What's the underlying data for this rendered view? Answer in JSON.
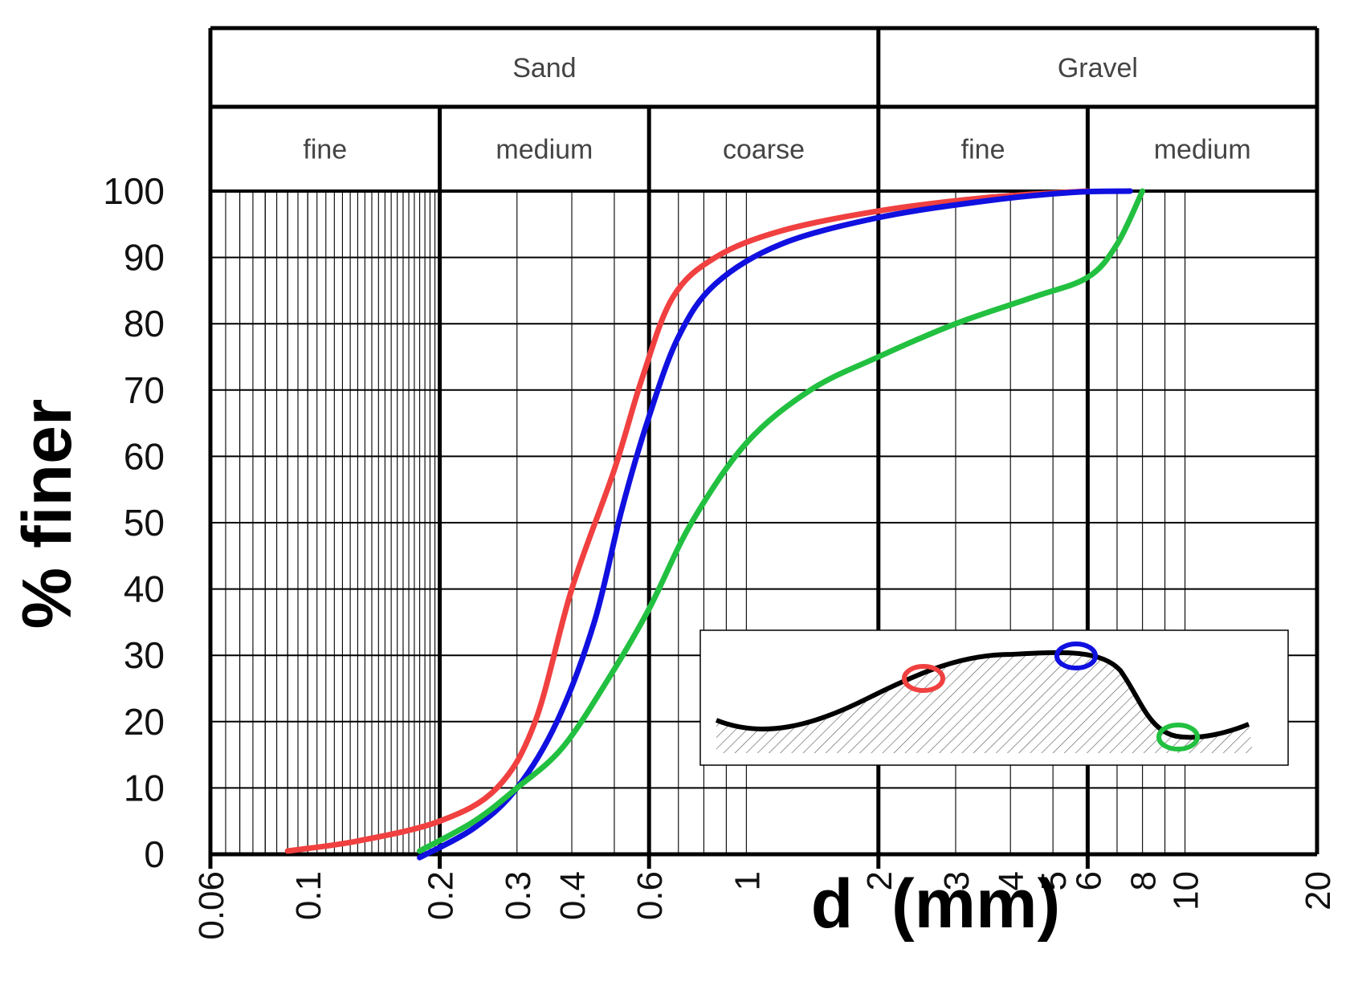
{
  "chart_data": {
    "type": "line",
    "title": "",
    "xlabel": "d  (mm)",
    "ylabel": "% finer",
    "xscale": "log",
    "xlim": [
      0.06,
      20
    ],
    "ylim": [
      0,
      100
    ],
    "yticks": [
      0,
      10,
      20,
      30,
      40,
      50,
      60,
      70,
      80,
      90,
      100
    ],
    "xticks": [
      {
        "label": "0.06",
        "value": 0.06
      },
      {
        "label": "0.1",
        "value": 0.1
      },
      {
        "label": "0.2",
        "value": 0.2
      },
      {
        "label": "0.3",
        "value": 0.3
      },
      {
        "label": "0.4",
        "value": 0.4
      },
      {
        "label": "0.6",
        "value": 0.6
      },
      {
        "label": "1",
        "value": 1
      },
      {
        "label": "2",
        "value": 2
      },
      {
        "label": "3",
        "value": 3
      },
      {
        "label": "4",
        "value": 4
      },
      {
        "label": "5",
        "value": 5
      },
      {
        "label": "6",
        "value": 6
      },
      {
        "label": "8",
        "value": 8
      },
      {
        "label": "10",
        "value": 10
      },
      {
        "label": "20",
        "value": 20
      }
    ],
    "header": {
      "classes": [
        {
          "label": "Sand",
          "from": 0.06,
          "to": 2
        },
        {
          "label": "Gravel",
          "from": 2,
          "to": 20
        }
      ],
      "subclasses": [
        {
          "label": "fine",
          "from": 0.06,
          "to": 0.2
        },
        {
          "label": "medium",
          "from": 0.2,
          "to": 0.6
        },
        {
          "label": "coarse",
          "from": 0.6,
          "to": 2
        },
        {
          "label": "fine",
          "from": 2,
          "to": 6
        },
        {
          "label": "medium",
          "from": 6,
          "to": 20
        }
      ]
    },
    "series": [
      {
        "name": "red",
        "color": "#f04040",
        "x": [
          0.09,
          0.13,
          0.2,
          0.27,
          0.33,
          0.4,
          0.5,
          0.58,
          0.68,
          0.85,
          1.2,
          2,
          3.5,
          6
        ],
        "y": [
          0.5,
          2,
          5,
          10,
          20,
          40,
          58,
          72,
          84,
          90,
          94,
          97,
          99,
          100
        ]
      },
      {
        "name": "blue",
        "color": "#1010e0",
        "x": [
          0.18,
          0.24,
          0.3,
          0.37,
          0.45,
          0.52,
          0.6,
          0.7,
          0.85,
          1.2,
          2,
          3.5,
          5.5,
          7.5
        ],
        "y": [
          -0.5,
          4,
          10,
          20,
          35,
          52,
          66,
          78,
          86,
          92,
          96,
          98.5,
          99.8,
          100
        ]
      },
      {
        "name": "green",
        "color": "#22c040",
        "x": [
          0.18,
          0.24,
          0.3,
          0.38,
          0.48,
          0.6,
          0.75,
          1.0,
          1.4,
          2,
          3,
          4.5,
          6,
          7,
          8
        ],
        "y": [
          0.5,
          5,
          10,
          16,
          26,
          37,
          50,
          62,
          70,
          75,
          80,
          84,
          87,
          92,
          100
        ]
      }
    ],
    "inset": {
      "description_markers": [
        {
          "color": "#f04040"
        },
        {
          "color": "#1010e0"
        },
        {
          "color": "#22c040"
        }
      ]
    }
  }
}
